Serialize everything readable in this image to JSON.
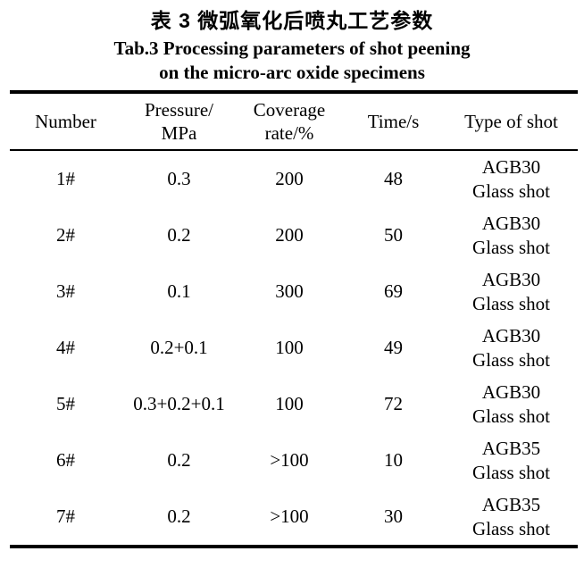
{
  "title": {
    "zh": "表 3 微弧氧化后喷丸工艺参数",
    "en_line1": "Tab.3 Processing parameters of shot peening",
    "en_line2": "on the micro-arc oxide specimens"
  },
  "table": {
    "headers": [
      "Number",
      "Pressure/\nMPa",
      "Coverage\nrate/%",
      "Time/s",
      "Type of shot"
    ],
    "rows": [
      {
        "number": "1#",
        "pressure": "0.3",
        "coverage_rate": "200",
        "time": "48",
        "type_of_shot": "AGB30\nGlass shot"
      },
      {
        "number": "2#",
        "pressure": "0.2",
        "coverage_rate": "200",
        "time": "50",
        "type_of_shot": "AGB30\nGlass shot"
      },
      {
        "number": "3#",
        "pressure": "0.1",
        "coverage_rate": "300",
        "time": "69",
        "type_of_shot": "AGB30\nGlass shot"
      },
      {
        "number": "4#",
        "pressure": "0.2+0.1",
        "coverage_rate": "100",
        "time": "49",
        "type_of_shot": "AGB30\nGlass shot"
      },
      {
        "number": "5#",
        "pressure": "0.3+0.2+0.1",
        "coverage_rate": "100",
        "time": "72",
        "type_of_shot": "AGB30\nGlass shot"
      },
      {
        "number": "6#",
        "pressure": "0.2",
        "coverage_rate": ">100",
        "time": "10",
        "type_of_shot": "AGB35\nGlass shot"
      },
      {
        "number": "7#",
        "pressure": "0.2",
        "coverage_rate": ">100",
        "time": "30",
        "type_of_shot": "AGB35\nGlass shot"
      }
    ],
    "colors": {
      "text": "#000000",
      "background": "#ffffff",
      "rule": "#000000"
    }
  }
}
